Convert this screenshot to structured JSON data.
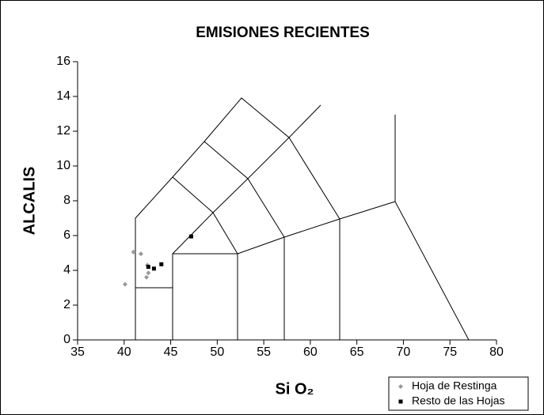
{
  "chart_data": {
    "type": "scatter",
    "title": "EMISIONES RECIENTES",
    "x_label": "Si O₂",
    "y_label": "ALCALIS",
    "xlim": [
      35,
      80
    ],
    "xticks": [
      35,
      40,
      45,
      50,
      55,
      60,
      65,
      70,
      75,
      80
    ],
    "ylim": [
      0,
      16
    ],
    "yticks": [
      0,
      2,
      4,
      6,
      8,
      10,
      12,
      14,
      16
    ],
    "legend": "bottom-right",
    "series": [
      {
        "name": "Hoja de Restinga",
        "color": "#999999",
        "marker": "diamond",
        "x": [
          40.1,
          41.0,
          41.8,
          42.5,
          42.6,
          42.4
        ],
        "values": [
          3.2,
          5.05,
          4.95,
          4.3,
          3.85,
          3.6
        ]
      },
      {
        "name": "Resto de las Hojas",
        "color": "#000000",
        "marker": "square",
        "x": [
          42.6,
          43.2,
          44.0,
          47.2
        ],
        "values": [
          4.2,
          4.1,
          4.35,
          5.95
        ]
      }
    ]
  }
}
